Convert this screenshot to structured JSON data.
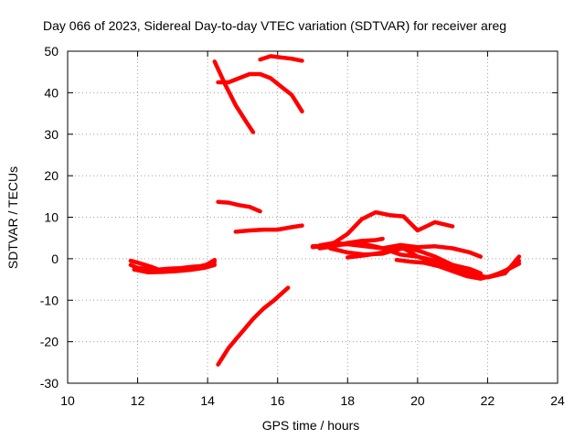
{
  "chart_data": {
    "type": "line",
    "title": "Day 066 of 2023, Sidereal Day-to-day VTEC variation (SDTVAR) for receiver areg",
    "xlabel": "GPS time / hours",
    "ylabel": "SDTVAR / TECUs",
    "xlim": [
      10,
      24
    ],
    "ylim": [
      -30,
      50
    ],
    "x_ticks": [
      10,
      12,
      14,
      16,
      18,
      20,
      22,
      24
    ],
    "y_ticks": [
      -30,
      -20,
      -10,
      0,
      10,
      20,
      30,
      40,
      50
    ],
    "x_tick_labels": [
      "10",
      "12",
      "14",
      "16",
      "18",
      "20",
      "22",
      "24"
    ],
    "y_tick_labels": [
      "-30",
      "-20",
      "-10",
      "0",
      "10",
      "20",
      "30",
      "40",
      "50"
    ],
    "grid": true,
    "legend": "none",
    "color": "#ff0000",
    "series": [
      {
        "x": [
          11.8,
          12.0,
          12.3,
          12.6,
          12.9,
          13.2,
          13.5,
          13.8,
          14.0,
          14.2
        ],
        "y": [
          -1.5,
          -2.2,
          -2.5,
          -2.6,
          -2.4,
          -2.3,
          -2.0,
          -1.8,
          -1.4,
          -0.8
        ]
      },
      {
        "x": [
          11.8,
          12.1,
          12.4,
          12.7,
          13.0,
          13.3,
          13.6,
          13.9,
          14.2
        ],
        "y": [
          -0.5,
          -1.2,
          -2.0,
          -3.0,
          -2.8,
          -2.6,
          -2.3,
          -1.8,
          -0.3
        ]
      },
      {
        "x": [
          11.9,
          12.3,
          12.7,
          13.1,
          13.5,
          13.9,
          14.2
        ],
        "y": [
          -2.6,
          -3.3,
          -3.2,
          -3.0,
          -2.7,
          -2.2,
          -1.5
        ]
      },
      {
        "x": [
          14.2,
          14.5,
          14.8,
          15.1,
          15.3
        ],
        "y": [
          47.5,
          42.0,
          37.0,
          33.0,
          30.5
        ]
      },
      {
        "x": [
          14.3,
          14.6,
          14.9,
          15.2,
          15.5,
          15.8,
          16.1,
          16.4,
          16.7
        ],
        "y": [
          42.5,
          42.5,
          43.5,
          44.5,
          44.5,
          43.5,
          41.5,
          39.5,
          35.5
        ]
      },
      {
        "x": [
          15.5,
          15.8,
          16.1,
          16.4,
          16.7
        ],
        "y": [
          48.0,
          48.8,
          48.5,
          48.2,
          47.7
        ]
      },
      {
        "x": [
          14.3,
          14.6,
          14.9,
          15.2,
          15.5
        ],
        "y": [
          13.7,
          13.5,
          12.9,
          12.5,
          11.4
        ]
      },
      {
        "x": [
          14.8,
          15.2,
          15.6,
          16.0,
          16.4,
          16.7
        ],
        "y": [
          6.5,
          6.8,
          7.0,
          7.0,
          7.6,
          8.0
        ]
      },
      {
        "x": [
          14.3,
          14.6,
          15.0,
          15.3,
          15.6,
          15.9,
          16.3
        ],
        "y": [
          -25.5,
          -21.5,
          -17.5,
          -14.5,
          -12.0,
          -10.0,
          -7.0
        ]
      },
      {
        "x": [
          17.0,
          17.5,
          18.0,
          18.4,
          18.8,
          19.2,
          19.6,
          19.8,
          20.0,
          20.5,
          21.0
        ],
        "y": [
          2.8,
          3.2,
          6.0,
          9.5,
          11.2,
          10.5,
          10.2,
          8.5,
          6.8,
          8.8,
          7.8
        ]
      },
      {
        "x": [
          17.0,
          17.5,
          18.0,
          18.5,
          19.0,
          19.5,
          20.0,
          20.5,
          21.0,
          21.5,
          21.8
        ],
        "y": [
          3.0,
          3.2,
          3.5,
          3.5,
          2.5,
          3.3,
          2.8,
          3.0,
          2.5,
          1.5,
          0.5
        ]
      },
      {
        "x": [
          17.2,
          17.6,
          18.0,
          18.5,
          19.0,
          19.5,
          20.0,
          20.5,
          21.0,
          21.5,
          21.8
        ],
        "y": [
          3.2,
          3.8,
          3.5,
          3.0,
          2.5,
          1.0,
          0.5,
          -0.5,
          -1.5,
          -2.5,
          -3.5
        ]
      },
      {
        "x": [
          17.5,
          18.0,
          18.5,
          19.0,
          19.3,
          19.6,
          20.0,
          20.5,
          21.0,
          21.5,
          22.0,
          22.5,
          22.9
        ],
        "y": [
          2.5,
          1.5,
          1.0,
          1.2,
          2.0,
          2.5,
          0.5,
          -1.0,
          -2.5,
          -4.0,
          -4.5,
          -3.0,
          -0.5
        ]
      },
      {
        "x": [
          18.0,
          18.5,
          19.0,
          19.5,
          20.0,
          20.5,
          21.0,
          21.5,
          22.0,
          22.5,
          22.9
        ],
        "y": [
          0.3,
          0.8,
          1.5,
          2.5,
          2.0,
          0.5,
          -1.5,
          -3.5,
          -4.5,
          -3.5,
          0.5
        ]
      },
      {
        "x": [
          19.4,
          19.8,
          20.2,
          20.6,
          21.0,
          21.4,
          21.8,
          22.2,
          22.6,
          22.9
        ],
        "y": [
          -0.3,
          -0.7,
          -1.0,
          -1.8,
          -3.0,
          -4.2,
          -4.8,
          -4.0,
          -2.5,
          -1.2
        ]
      },
      {
        "x": [
          17.2,
          17.6,
          18.0,
          18.4,
          18.8,
          19.0
        ],
        "y": [
          2.5,
          3.0,
          3.8,
          4.3,
          4.5,
          4.8
        ]
      }
    ]
  }
}
